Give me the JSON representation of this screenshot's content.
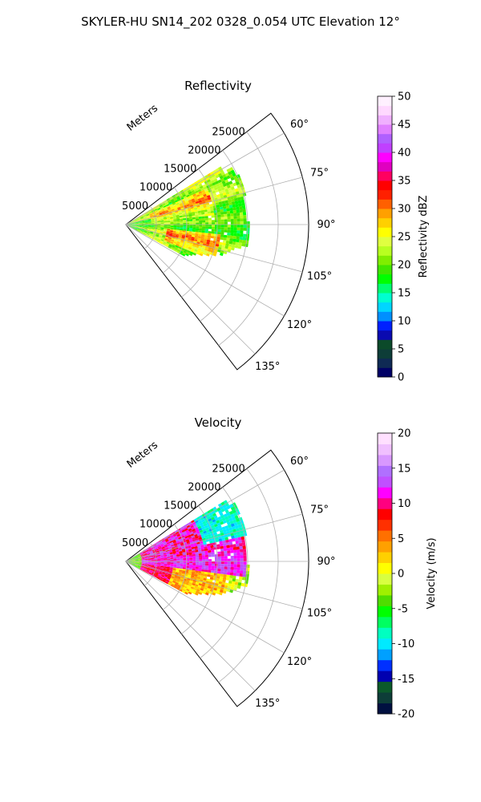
{
  "figure": {
    "suptitle": "SKYLER-HU  SN14_202  0328_0.054 UTC Elevation 12°"
  },
  "chart_data": [
    {
      "type": "heatmap",
      "title": "Reflectivity",
      "projection": "polar-sector",
      "radial_label": "Meters",
      "radial_ticks": [
        "5000",
        "10000",
        "15000",
        "20000",
        "25000"
      ],
      "radial_tick_values": [
        5000,
        10000,
        15000,
        20000,
        25000
      ],
      "rlim": [
        0,
        30000
      ],
      "angle_ticks": [
        "60°",
        "75°",
        "90°",
        "105°",
        "120°",
        "135°"
      ],
      "angle_tick_values": [
        60,
        75,
        90,
        105,
        120,
        135
      ],
      "theta_range": [
        52.5,
        142.5
      ],
      "grid": true,
      "colorbar": {
        "label": "Reflectivity dBZ",
        "ticks": [
          "0",
          "5",
          "10",
          "15",
          "20",
          "25",
          "30",
          "35",
          "40",
          "45",
          "50"
        ],
        "range": [
          0,
          50
        ]
      },
      "echo_extent_m": 24000,
      "value_range_observed": [
        15,
        40
      ]
    },
    {
      "type": "heatmap",
      "title": "Velocity",
      "projection": "polar-sector",
      "radial_label": "Meters",
      "radial_ticks": [
        "5000",
        "10000",
        "15000",
        "20000",
        "25000"
      ],
      "radial_tick_values": [
        5000,
        10000,
        15000,
        20000,
        25000
      ],
      "rlim": [
        0,
        30000
      ],
      "angle_ticks": [
        "60°",
        "75°",
        "90°",
        "105°",
        "120°",
        "135°"
      ],
      "angle_tick_values": [
        60,
        75,
        90,
        105,
        120,
        135
      ],
      "theta_range": [
        52.5,
        142.5
      ],
      "grid": true,
      "colorbar": {
        "label": "Velocity (m/s)",
        "ticks": [
          "-20",
          "-15",
          "-10",
          "-5",
          "0",
          "5",
          "10",
          "15",
          "20"
        ],
        "range": [
          -20,
          20
        ]
      },
      "echo_extent_m": 24000,
      "value_range_observed": [
        -12,
        15
      ]
    }
  ],
  "colormaps": {
    "reflectivity": [
      "#000066",
      "#0f2a54",
      "#0d3d38",
      "#0b4a2a",
      "#0a0ab0",
      "#0020ff",
      "#0090ff",
      "#00d6ff",
      "#00ffd0",
      "#00ff70",
      "#00ff00",
      "#40e600",
      "#80ee00",
      "#b8ff20",
      "#e0ff40",
      "#ffff00",
      "#ffd000",
      "#ffa000",
      "#ff6000",
      "#ff2000",
      "#ff0000",
      "#ff0060",
      "#e000c0",
      "#ff00ff",
      "#c040ff",
      "#b060ff",
      "#e080ff",
      "#f0b0ff",
      "#ffd8ff",
      "#fff0ff"
    ],
    "velocity": [
      "#001040",
      "#0d3d38",
      "#0b5a2a",
      "#0000b0",
      "#0030ff",
      "#00a0ff",
      "#00eaff",
      "#00ffc0",
      "#00ff60",
      "#00ff00",
      "#50dd00",
      "#a0f000",
      "#d8ff40",
      "#ffff00",
      "#ffd000",
      "#ffa000",
      "#ff7000",
      "#ff3000",
      "#ff0000",
      "#ff0080",
      "#ff00ff",
      "#c050ff",
      "#b070ff",
      "#d898ff",
      "#f0c0ff",
      "#ffe0ff"
    ]
  }
}
